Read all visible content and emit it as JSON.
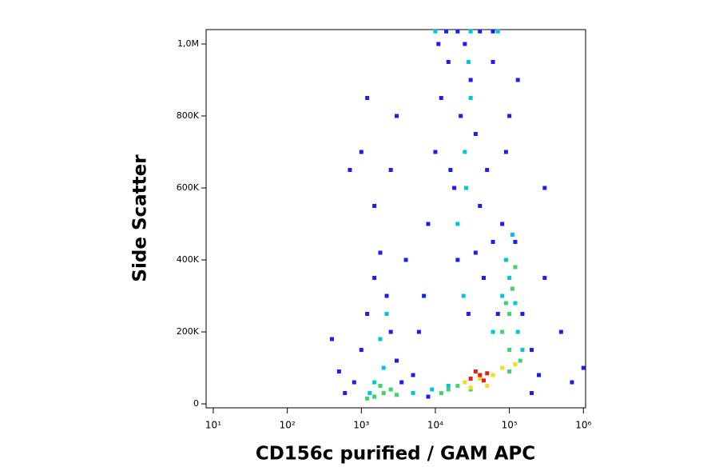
{
  "chart_data": {
    "type": "scatter",
    "x_label": "CD156c purified / GAM APC",
    "y_label": "Side Scatter",
    "xscale": "log",
    "xlim": [
      8,
      1070000
    ],
    "ylim": [
      -11000,
      1040000
    ],
    "xticks": [
      {
        "value": 10,
        "label": "10¹"
      },
      {
        "value": 100,
        "label": "10²"
      },
      {
        "value": 1000,
        "label": "10³"
      },
      {
        "value": 10000,
        "label": "10⁴"
      },
      {
        "value": 100000,
        "label": "10⁵"
      },
      {
        "value": 1000000,
        "label": "10⁶"
      }
    ],
    "yticks": [
      0,
      {
        "value": 200000,
        "label": "200K"
      },
      {
        "value": 400000,
        "label": "400K"
      },
      {
        "value": 600000,
        "label": "600K"
      },
      {
        "value": 800000,
        "label": "800K"
      },
      {
        "value": 1000000,
        "label": "1,0M"
      }
    ],
    "series": [
      {
        "color": "#1c1cf5",
        "x": [
          600,
          800,
          1000,
          1200,
          1500,
          1800,
          2200,
          2500,
          3000,
          1500,
          1000,
          2500,
          400,
          500,
          3500,
          5000,
          7000,
          8000,
          10000,
          12000,
          15000,
          18000,
          20000,
          25000,
          30000,
          35000,
          40000,
          28000,
          22000,
          16000,
          45000,
          60000,
          80000,
          120000,
          150000,
          200000,
          250000,
          300000,
          500000,
          700000,
          1000000,
          90000,
          100000,
          130000,
          60000,
          6000,
          4000,
          3000,
          1200,
          700,
          300000,
          200000,
          8000,
          50000,
          35000,
          70000,
          11000,
          14000,
          20000,
          40000,
          60000
        ],
        "y": [
          30000,
          60000,
          150000,
          250000,
          350000,
          420000,
          300000,
          200000,
          120000,
          550000,
          700000,
          650000,
          180000,
          90000,
          60000,
          80000,
          300000,
          500000,
          700000,
          850000,
          950000,
          600000,
          400000,
          1000000,
          900000,
          750000,
          550000,
          250000,
          800000,
          650000,
          350000,
          450000,
          500000,
          450000,
          250000,
          150000,
          80000,
          350000,
          200000,
          60000,
          100000,
          700000,
          800000,
          900000,
          950000,
          200000,
          400000,
          800000,
          850000,
          650000,
          600000,
          30000,
          20000,
          650000,
          420000,
          250000,
          1000000,
          1035000,
          1035000,
          1035000,
          1035000
        ]
      },
      {
        "color": "#00c4e4",
        "x": [
          1500,
          2000,
          1800,
          2200,
          1300,
          20000,
          25000,
          30000,
          28000,
          24000,
          60000,
          80000,
          100000,
          120000,
          90000,
          110000,
          130000,
          15000,
          9000,
          150000,
          10000,
          30000,
          70000,
          26000,
          5000
        ],
        "y": [
          60000,
          100000,
          180000,
          250000,
          30000,
          500000,
          700000,
          850000,
          950000,
          300000,
          200000,
          300000,
          350000,
          280000,
          400000,
          470000,
          200000,
          50000,
          40000,
          150000,
          1035000,
          1035000,
          1035000,
          600000,
          30000
        ]
      },
      {
        "color": "#3fd36b",
        "x": [
          1500,
          2000,
          2500,
          1200,
          3000,
          1800,
          100000,
          110000,
          90000,
          120000,
          15000,
          20000,
          12000,
          80000,
          100000,
          100000,
          140000,
          30000
        ],
        "y": [
          20000,
          30000,
          40000,
          15000,
          25000,
          50000,
          250000,
          320000,
          280000,
          380000,
          40000,
          50000,
          30000,
          200000,
          150000,
          90000,
          120000,
          40000
        ]
      },
      {
        "color": "#eee020",
        "x": [
          25000,
          40000,
          60000,
          80000,
          50000,
          30000,
          120000
        ],
        "y": [
          60000,
          70000,
          80000,
          100000,
          50000,
          45000,
          110000
        ]
      },
      {
        "color": "#e82010",
        "x": [
          30000,
          40000,
          35000,
          45000,
          50000
        ],
        "y": [
          70000,
          80000,
          90000,
          65000,
          85000
        ]
      }
    ]
  }
}
